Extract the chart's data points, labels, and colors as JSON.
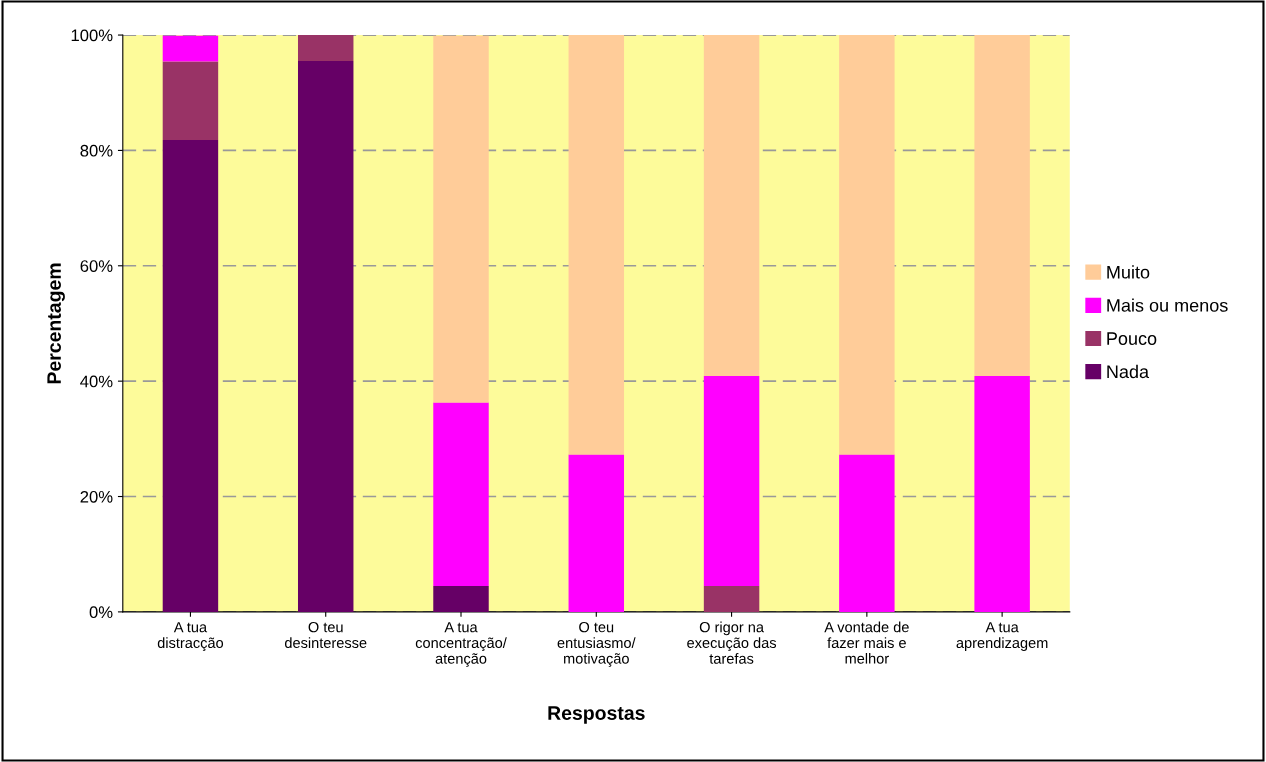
{
  "chart_data": {
    "type": "bar",
    "stacked": true,
    "xlabel": "Respostas",
    "ylabel": "Percentagem",
    "categories": [
      "A tua\ndistracção",
      "O teu\ndesinteresse",
      "A tua\nconcentração/\natenção",
      "O teu\nentusiasmo/\nmotivação",
      "O rigor na\nexecução das\ntarefas",
      "A vontade de\nfazer mais e\nmelhor",
      "A tua\naprendizagem"
    ],
    "series": [
      {
        "name": "Nada",
        "color": "#660066",
        "values": [
          81.8,
          95.5,
          4.5,
          0,
          0,
          0,
          0
        ]
      },
      {
        "name": "Pouco",
        "color": "#993366",
        "values": [
          13.6,
          4.5,
          0,
          0,
          4.5,
          0,
          0
        ]
      },
      {
        "name": "Mais ou menos",
        "color": "#ff00ff",
        "values": [
          4.5,
          0,
          31.8,
          27.3,
          36.4,
          27.3,
          40.9
        ]
      },
      {
        "name": "Muito",
        "color": "#ffcc99",
        "values": [
          0,
          0,
          63.6,
          72.7,
          59.1,
          72.7,
          59.1
        ]
      }
    ],
    "ylim": [
      0,
      100
    ],
    "yticks": [
      {
        "value": 0,
        "label": "0%"
      },
      {
        "value": 20,
        "label": "20%"
      },
      {
        "value": 40,
        "label": "40%"
      },
      {
        "value": 60,
        "label": "60%"
      },
      {
        "value": 80,
        "label": "80%"
      },
      {
        "value": 100,
        "label": "100%"
      }
    ],
    "grid": "y",
    "legend": "right"
  }
}
